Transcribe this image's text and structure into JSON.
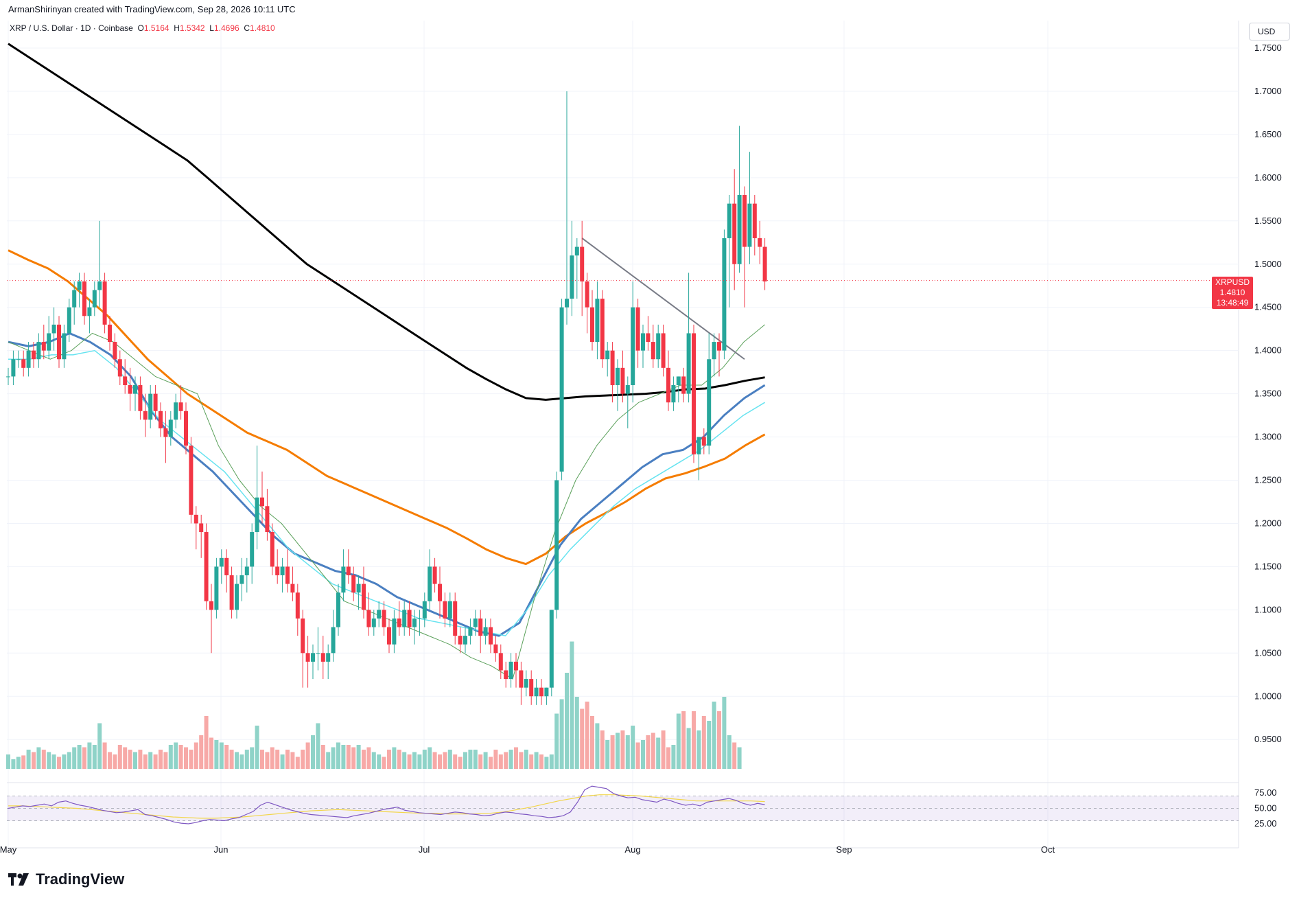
{
  "header": {
    "attribution": "ArmanShirinyan created with TradingView.com, Sep 28, 2026 10:11 UTC"
  },
  "symbol": {
    "name": "XRP / U.S. Dollar · 1D · Coinbase",
    "open_label": "O",
    "open": "1.5164",
    "high_label": "H",
    "high": "1.5342",
    "low_label": "L",
    "low": "1.4696",
    "close_label": "C",
    "close": "1.4810"
  },
  "currency_button": "USD",
  "price_tag": {
    "ticker": "XRPUSD",
    "price": "1.4810",
    "countdown": "13:48:49"
  },
  "logo_text": "TradingView",
  "colors": {
    "up": "#26a69a",
    "down": "#f23645",
    "ma200": "#000000",
    "ma100": "#f57c00",
    "ma50": "#4a7fc1",
    "ma_cyan": "#66e3f0",
    "ma_green": "#5aa05a",
    "rsi": "#7e57c2",
    "rsi_ma": "#f2d64b",
    "trendline": "#787b86"
  },
  "chart_data": {
    "type": "candlestick",
    "price_axis_ticks": [
      "1.7500",
      "1.7000",
      "1.6500",
      "1.6000",
      "1.5500",
      "1.5000",
      "1.4500",
      "1.4000",
      "1.3500",
      "1.3000",
      "1.2500",
      "1.2000",
      "1.1500",
      "1.1000",
      "1.0500",
      "1.0000",
      "0.9500"
    ],
    "time_axis_ticks": [
      "May",
      "Jun",
      "Jul",
      "Aug",
      "Sep",
      "Oct"
    ],
    "rsi_axis_ticks": [
      "75.00",
      "50.00",
      "25.00"
    ],
    "ylim": [
      0.92,
      1.77
    ],
    "candles": [
      [
        1.37,
        1.38,
        1.36,
        1.37
      ],
      [
        1.37,
        1.4,
        1.36,
        1.39
      ],
      [
        1.39,
        1.4,
        1.38,
        1.39
      ],
      [
        1.39,
        1.4,
        1.37,
        1.38
      ],
      [
        1.38,
        1.41,
        1.37,
        1.4
      ],
      [
        1.4,
        1.41,
        1.38,
        1.39
      ],
      [
        1.39,
        1.42,
        1.38,
        1.41
      ],
      [
        1.41,
        1.43,
        1.39,
        1.4
      ],
      [
        1.4,
        1.44,
        1.39,
        1.42
      ],
      [
        1.42,
        1.45,
        1.4,
        1.43
      ],
      [
        1.43,
        1.44,
        1.38,
        1.39
      ],
      [
        1.39,
        1.43,
        1.38,
        1.42
      ],
      [
        1.42,
        1.46,
        1.41,
        1.45
      ],
      [
        1.45,
        1.48,
        1.43,
        1.47
      ],
      [
        1.47,
        1.49,
        1.45,
        1.48
      ],
      [
        1.48,
        1.49,
        1.43,
        1.44
      ],
      [
        1.44,
        1.46,
        1.42,
        1.45
      ],
      [
        1.45,
        1.48,
        1.44,
        1.47
      ],
      [
        1.47,
        1.55,
        1.45,
        1.48
      ],
      [
        1.48,
        1.49,
        1.42,
        1.43
      ],
      [
        1.43,
        1.44,
        1.4,
        1.41
      ],
      [
        1.41,
        1.42,
        1.38,
        1.39
      ],
      [
        1.39,
        1.4,
        1.36,
        1.37
      ],
      [
        1.37,
        1.39,
        1.35,
        1.36
      ],
      [
        1.36,
        1.38,
        1.33,
        1.35
      ],
      [
        1.35,
        1.37,
        1.33,
        1.36
      ],
      [
        1.36,
        1.37,
        1.32,
        1.33
      ],
      [
        1.33,
        1.35,
        1.3,
        1.32
      ],
      [
        1.32,
        1.36,
        1.31,
        1.35
      ],
      [
        1.35,
        1.36,
        1.32,
        1.33
      ],
      [
        1.33,
        1.34,
        1.3,
        1.31
      ],
      [
        1.31,
        1.33,
        1.27,
        1.3
      ],
      [
        1.3,
        1.33,
        1.29,
        1.32
      ],
      [
        1.32,
        1.35,
        1.31,
        1.34
      ],
      [
        1.34,
        1.36,
        1.32,
        1.33
      ],
      [
        1.33,
        1.34,
        1.28,
        1.29
      ],
      [
        1.29,
        1.3,
        1.2,
        1.21
      ],
      [
        1.21,
        1.22,
        1.17,
        1.2
      ],
      [
        1.2,
        1.21,
        1.16,
        1.19
      ],
      [
        1.19,
        1.2,
        1.1,
        1.11
      ],
      [
        1.11,
        1.13,
        1.05,
        1.1
      ],
      [
        1.1,
        1.16,
        1.09,
        1.15
      ],
      [
        1.15,
        1.17,
        1.13,
        1.16
      ],
      [
        1.16,
        1.17,
        1.12,
        1.14
      ],
      [
        1.14,
        1.15,
        1.09,
        1.1
      ],
      [
        1.1,
        1.14,
        1.09,
        1.13
      ],
      [
        1.13,
        1.16,
        1.11,
        1.14
      ],
      [
        1.14,
        1.16,
        1.12,
        1.15
      ],
      [
        1.15,
        1.2,
        1.13,
        1.19
      ],
      [
        1.19,
        1.29,
        1.17,
        1.23
      ],
      [
        1.23,
        1.26,
        1.2,
        1.22
      ],
      [
        1.22,
        1.24,
        1.18,
        1.19
      ],
      [
        1.19,
        1.2,
        1.14,
        1.15
      ],
      [
        1.15,
        1.17,
        1.13,
        1.14
      ],
      [
        1.14,
        1.16,
        1.12,
        1.15
      ],
      [
        1.15,
        1.17,
        1.12,
        1.13
      ],
      [
        1.13,
        1.15,
        1.11,
        1.12
      ],
      [
        1.12,
        1.13,
        1.07,
        1.09
      ],
      [
        1.09,
        1.1,
        1.01,
        1.05
      ],
      [
        1.05,
        1.07,
        1.01,
        1.04
      ],
      [
        1.04,
        1.06,
        1.02,
        1.05
      ],
      [
        1.05,
        1.08,
        1.03,
        1.05
      ],
      [
        1.05,
        1.07,
        1.02,
        1.04
      ],
      [
        1.04,
        1.06,
        1.02,
        1.05
      ],
      [
        1.05,
        1.1,
        1.04,
        1.08
      ],
      [
        1.08,
        1.13,
        1.07,
        1.12
      ],
      [
        1.12,
        1.17,
        1.11,
        1.15
      ],
      [
        1.15,
        1.17,
        1.13,
        1.14
      ],
      [
        1.14,
        1.15,
        1.11,
        1.12
      ],
      [
        1.12,
        1.14,
        1.1,
        1.13
      ],
      [
        1.13,
        1.15,
        1.09,
        1.1
      ],
      [
        1.1,
        1.12,
        1.07,
        1.08
      ],
      [
        1.08,
        1.1,
        1.07,
        1.09
      ],
      [
        1.09,
        1.11,
        1.08,
        1.1
      ],
      [
        1.1,
        1.11,
        1.07,
        1.08
      ],
      [
        1.08,
        1.09,
        1.05,
        1.06
      ],
      [
        1.06,
        1.1,
        1.05,
        1.09
      ],
      [
        1.09,
        1.11,
        1.07,
        1.08
      ],
      [
        1.08,
        1.11,
        1.07,
        1.1
      ],
      [
        1.1,
        1.11,
        1.07,
        1.08
      ],
      [
        1.08,
        1.1,
        1.06,
        1.09
      ],
      [
        1.09,
        1.1,
        1.07,
        1.09
      ],
      [
        1.09,
        1.12,
        1.08,
        1.11
      ],
      [
        1.11,
        1.17,
        1.1,
        1.15
      ],
      [
        1.15,
        1.16,
        1.12,
        1.13
      ],
      [
        1.13,
        1.15,
        1.09,
        1.11
      ],
      [
        1.11,
        1.12,
        1.08,
        1.09
      ],
      [
        1.09,
        1.12,
        1.08,
        1.11
      ],
      [
        1.11,
        1.12,
        1.06,
        1.07
      ],
      [
        1.07,
        1.08,
        1.05,
        1.06
      ],
      [
        1.06,
        1.08,
        1.05,
        1.07
      ],
      [
        1.07,
        1.09,
        1.06,
        1.08
      ],
      [
        1.08,
        1.1,
        1.07,
        1.09
      ],
      [
        1.09,
        1.1,
        1.05,
        1.07
      ],
      [
        1.07,
        1.09,
        1.06,
        1.08
      ],
      [
        1.08,
        1.09,
        1.05,
        1.06
      ],
      [
        1.06,
        1.07,
        1.04,
        1.05
      ],
      [
        1.05,
        1.06,
        1.02,
        1.03
      ],
      [
        1.03,
        1.04,
        1.01,
        1.02
      ],
      [
        1.02,
        1.05,
        1.01,
        1.04
      ],
      [
        1.04,
        1.05,
        1.01,
        1.03
      ],
      [
        1.03,
        1.04,
        0.99,
        1.01
      ],
      [
        1.01,
        1.03,
        1.0,
        1.02
      ],
      [
        1.02,
        1.03,
        0.99,
        1.0
      ],
      [
        1.0,
        1.02,
        0.99,
        1.01
      ],
      [
        1.01,
        1.02,
        0.99,
        1.0
      ],
      [
        1.0,
        1.01,
        0.99,
        1.01
      ],
      [
        1.01,
        1.1,
        1.0,
        1.1
      ],
      [
        1.1,
        1.26,
        1.09,
        1.25
      ],
      [
        1.26,
        1.46,
        1.25,
        1.45
      ],
      [
        1.45,
        1.7,
        1.43,
        1.46
      ],
      [
        1.46,
        1.55,
        1.44,
        1.51
      ],
      [
        1.51,
        1.53,
        1.46,
        1.52
      ],
      [
        1.52,
        1.55,
        1.44,
        1.48
      ],
      [
        1.48,
        1.49,
        1.42,
        1.45
      ],
      [
        1.45,
        1.47,
        1.4,
        1.41
      ],
      [
        1.41,
        1.48,
        1.39,
        1.46
      ],
      [
        1.46,
        1.47,
        1.38,
        1.39
      ],
      [
        1.39,
        1.41,
        1.37,
        1.4
      ],
      [
        1.4,
        1.41,
        1.34,
        1.36
      ],
      [
        1.36,
        1.39,
        1.33,
        1.38
      ],
      [
        1.38,
        1.4,
        1.34,
        1.35
      ],
      [
        1.35,
        1.37,
        1.31,
        1.36
      ],
      [
        1.36,
        1.48,
        1.34,
        1.45
      ],
      [
        1.45,
        1.46,
        1.38,
        1.4
      ],
      [
        1.4,
        1.43,
        1.38,
        1.42
      ],
      [
        1.42,
        1.44,
        1.4,
        1.41
      ],
      [
        1.41,
        1.43,
        1.38,
        1.39
      ],
      [
        1.39,
        1.43,
        1.38,
        1.42
      ],
      [
        1.42,
        1.43,
        1.37,
        1.38
      ],
      [
        1.38,
        1.4,
        1.33,
        1.34
      ],
      [
        1.34,
        1.37,
        1.33,
        1.36
      ],
      [
        1.36,
        1.37,
        1.34,
        1.37
      ],
      [
        1.37,
        1.38,
        1.34,
        1.35
      ],
      [
        1.35,
        1.49,
        1.34,
        1.42
      ],
      [
        1.42,
        1.43,
        1.27,
        1.28
      ],
      [
        1.28,
        1.3,
        1.25,
        1.3
      ],
      [
        1.3,
        1.31,
        1.28,
        1.29
      ],
      [
        1.29,
        1.42,
        1.28,
        1.39
      ],
      [
        1.39,
        1.42,
        1.37,
        1.41
      ],
      [
        1.41,
        1.42,
        1.37,
        1.4
      ],
      [
        1.4,
        1.54,
        1.39,
        1.53
      ],
      [
        1.53,
        1.58,
        1.45,
        1.57
      ],
      [
        1.57,
        1.61,
        1.47,
        1.5
      ],
      [
        1.5,
        1.66,
        1.49,
        1.58
      ],
      [
        1.58,
        1.59,
        1.45,
        1.52
      ],
      [
        1.52,
        1.63,
        1.5,
        1.57
      ],
      [
        1.57,
        1.58,
        1.51,
        1.53
      ],
      [
        1.53,
        1.55,
        1.5,
        1.52
      ],
      [
        1.52,
        1.53,
        1.47,
        1.48
      ]
    ],
    "volume": [
      0.3,
      0.2,
      0.25,
      0.28,
      0.4,
      0.35,
      0.45,
      0.4,
      0.35,
      0.3,
      0.25,
      0.3,
      0.35,
      0.45,
      0.5,
      0.45,
      0.55,
      0.5,
      0.95,
      0.55,
      0.35,
      0.3,
      0.5,
      0.45,
      0.4,
      0.35,
      0.4,
      0.3,
      0.35,
      0.3,
      0.4,
      0.35,
      0.5,
      0.55,
      0.5,
      0.45,
      0.4,
      0.55,
      0.7,
      1.1,
      0.65,
      0.6,
      0.55,
      0.5,
      0.4,
      0.35,
      0.3,
      0.4,
      0.45,
      0.9,
      0.4,
      0.35,
      0.45,
      0.4,
      0.3,
      0.4,
      0.35,
      0.25,
      0.4,
      0.55,
      0.7,
      0.95,
      0.5,
      0.35,
      0.45,
      0.55,
      0.5,
      0.5,
      0.45,
      0.5,
      0.4,
      0.45,
      0.35,
      0.3,
      0.25,
      0.4,
      0.45,
      0.4,
      0.35,
      0.3,
      0.35,
      0.3,
      0.4,
      0.45,
      0.35,
      0.3,
      0.35,
      0.4,
      0.3,
      0.25,
      0.35,
      0.4,
      0.4,
      0.3,
      0.35,
      0.25,
      0.4,
      0.3,
      0.35,
      0.4,
      0.45,
      0.35,
      0.4,
      0.3,
      0.35,
      0.3,
      0.25,
      0.3,
      1.15,
      1.45,
      2.0,
      2.65,
      1.5,
      1.25,
      1.4,
      1.1,
      0.95,
      0.8,
      0.6,
      0.7,
      0.75,
      0.8,
      0.7,
      0.9,
      0.55,
      0.6,
      0.7,
      0.75,
      0.65,
      0.8,
      0.45,
      0.5,
      1.15,
      1.2,
      0.85,
      1.2,
      0.8,
      1.1,
      1.0,
      1.4,
      1.2,
      1.5,
      0.7,
      0.55,
      0.45
    ],
    "ma200": [
      1.755,
      1.74,
      1.725,
      1.71,
      1.695,
      1.68,
      1.665,
      1.65,
      1.635,
      1.62,
      1.6,
      1.58,
      1.56,
      1.54,
      1.52,
      1.5,
      1.485,
      1.47,
      1.455,
      1.44,
      1.425,
      1.41,
      1.395,
      1.38,
      1.367,
      1.355,
      1.345,
      1.343,
      1.345,
      1.347,
      1.348,
      1.349,
      1.35,
      1.352,
      1.355,
      1.356,
      1.36,
      1.365,
      1.369
    ],
    "ma100": [
      1.516,
      1.505,
      1.495,
      1.48,
      1.46,
      1.44,
      1.415,
      1.39,
      1.37,
      1.35,
      1.335,
      1.32,
      1.305,
      1.295,
      1.285,
      1.27,
      1.255,
      1.245,
      1.235,
      1.225,
      1.215,
      1.205,
      1.195,
      1.183,
      1.17,
      1.16,
      1.153,
      1.165,
      1.185,
      1.2,
      1.212,
      1.225,
      1.24,
      1.252,
      1.258,
      1.266,
      1.275,
      1.29,
      1.303
    ],
    "ma50": [
      1.41,
      1.405,
      1.41,
      1.42,
      1.41,
      1.395,
      1.37,
      1.33,
      1.3,
      1.28,
      1.26,
      1.235,
      1.21,
      1.185,
      1.165,
      1.155,
      1.145,
      1.14,
      1.13,
      1.115,
      1.105,
      1.095,
      1.085,
      1.075,
      1.07,
      1.085,
      1.13,
      1.175,
      1.205,
      1.225,
      1.245,
      1.265,
      1.28,
      1.285,
      1.3,
      1.325,
      1.345,
      1.36
    ],
    "ma_cyan": [
      1.39,
      1.39,
      1.395,
      1.395,
      1.4,
      1.38,
      1.35,
      1.32,
      1.3,
      1.28,
      1.26,
      1.23,
      1.2,
      1.17,
      1.15,
      1.13,
      1.12,
      1.11,
      1.1,
      1.09,
      1.085,
      1.08,
      1.075,
      1.07,
      1.1,
      1.14,
      1.17,
      1.195,
      1.22,
      1.24,
      1.255,
      1.27,
      1.285,
      1.305,
      1.325,
      1.34
    ],
    "ma_green": [
      1.41,
      1.4,
      1.39,
      1.4,
      1.42,
      1.41,
      1.39,
      1.37,
      1.36,
      1.35,
      1.29,
      1.25,
      1.22,
      1.2,
      1.17,
      1.14,
      1.11,
      1.1,
      1.09,
      1.08,
      1.07,
      1.06,
      1.045,
      1.035,
      1.02,
      1.11,
      1.19,
      1.25,
      1.29,
      1.32,
      1.34,
      1.35,
      1.36,
      1.36,
      1.38,
      1.41,
      1.43
    ],
    "trendline": [
      [
        113,
        1.53
      ],
      [
        145,
        1.39
      ]
    ],
    "rsi": [
      50,
      52,
      54,
      53,
      55,
      57,
      54,
      60,
      62,
      58,
      55,
      53,
      50,
      47,
      45,
      43,
      44,
      46,
      48,
      40,
      38,
      35,
      32,
      28,
      26,
      25,
      27,
      30,
      32,
      31,
      30,
      33,
      35,
      40,
      45,
      55,
      60,
      56,
      52,
      48,
      45,
      42,
      40,
      39,
      38,
      37,
      36,
      35,
      38,
      40,
      42,
      45,
      48,
      50,
      52,
      47,
      45,
      43,
      42,
      41,
      40,
      42,
      44,
      43,
      41,
      40,
      38,
      39,
      42,
      44,
      43,
      41,
      40,
      38,
      37,
      35,
      36,
      38,
      44,
      60,
      80,
      86,
      84,
      82,
      74,
      70,
      67,
      68,
      64,
      62,
      60,
      65,
      62,
      58,
      55,
      57,
      54,
      60,
      62,
      64,
      66,
      63,
      58,
      55,
      58,
      56
    ],
    "rsi_ma": [
      54,
      54,
      53,
      52,
      51,
      50,
      48,
      46,
      44,
      42,
      40,
      38,
      36,
      35,
      34,
      34,
      35,
      36,
      38,
      40,
      42,
      44,
      46,
      47,
      48,
      47,
      46,
      45,
      44,
      43,
      42,
      42,
      41,
      41,
      41,
      42,
      44,
      48,
      52,
      57,
      62,
      66,
      70,
      72,
      72,
      71,
      70,
      68,
      66,
      64,
      62,
      62,
      62,
      62,
      62,
      61
    ]
  }
}
